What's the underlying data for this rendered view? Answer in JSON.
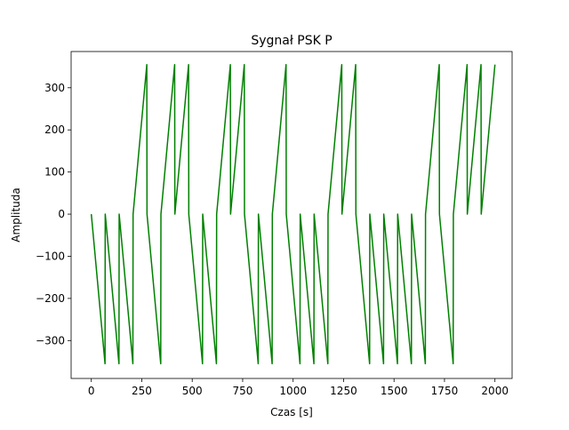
{
  "chart_data": {
    "type": "line",
    "title": "Sygnał PSK P",
    "xlabel": "Czas [s]",
    "ylabel": "Amplituda",
    "color": "#008000",
    "x": [
      0,
      17,
      34,
      51,
      68,
      69,
      86,
      103,
      120,
      137,
      138,
      155,
      172,
      189,
      206,
      207,
      224,
      241,
      258,
      275,
      276,
      293,
      310,
      327,
      344,
      345,
      362,
      379,
      396,
      413,
      414,
      431,
      448,
      465,
      482,
      483,
      500,
      517,
      534,
      551,
      552,
      569,
      586,
      603,
      620,
      621,
      638,
      655,
      672,
      689,
      690,
      707,
      724,
      741,
      758,
      759,
      776,
      793,
      810,
      827,
      828,
      845,
      862,
      879,
      896,
      897,
      914,
      931,
      948,
      965,
      966,
      983,
      1000,
      1017,
      1034,
      1035,
      1052,
      1069,
      1086,
      1103,
      1104,
      1121,
      1138,
      1155,
      1172,
      1173,
      1190,
      1207,
      1224,
      1241,
      1242,
      1259,
      1276,
      1293,
      1310,
      1311,
      1328,
      1345,
      1362,
      1379,
      1380,
      1397,
      1414,
      1431,
      1448,
      1449,
      1466,
      1483,
      1500,
      1517,
      1518,
      1535,
      1552,
      1569,
      1586,
      1587,
      1604,
      1621,
      1638,
      1655,
      1656,
      1673,
      1690,
      1707,
      1724,
      1725,
      1742,
      1759,
      1776,
      1793,
      1794,
      1811,
      1828,
      1845,
      1862,
      1863,
      1880,
      1897,
      1914,
      1931,
      1932,
      1949,
      1966,
      1983,
      2000
    ],
    "values": [
      0,
      -88,
      -177,
      -266,
      -355,
      0,
      -88,
      -177,
      -266,
      -355,
      0,
      -88,
      -177,
      -266,
      -355,
      0,
      88,
      177,
      266,
      355,
      0,
      -88,
      -177,
      -266,
      -355,
      0,
      88,
      177,
      266,
      355,
      0,
      88,
      177,
      266,
      355,
      0,
      -88,
      -177,
      -266,
      -355,
      0,
      -88,
      -177,
      -266,
      -355,
      0,
      88,
      177,
      266,
      355,
      0,
      88,
      177,
      266,
      355,
      0,
      -88,
      -177,
      -266,
      -355,
      0,
      -88,
      -177,
      -266,
      -355,
      0,
      88,
      177,
      266,
      355,
      0,
      -88,
      -177,
      -266,
      -355,
      0,
      -88,
      -177,
      -266,
      -355,
      0,
      -88,
      -177,
      -266,
      -355,
      0,
      88,
      177,
      266,
      355,
      0,
      88,
      177,
      266,
      355,
      0,
      -88,
      -177,
      -266,
      -355,
      0,
      -88,
      -177,
      -266,
      -355,
      0,
      -88,
      -177,
      -266,
      -355,
      0,
      -88,
      -177,
      -266,
      -355,
      0,
      -88,
      -177,
      -266,
      -355,
      0,
      88,
      177,
      266,
      355,
      0,
      -88,
      -177,
      -266,
      -355,
      0,
      88,
      177,
      266,
      355,
      0,
      88,
      177,
      266,
      355,
      0,
      88,
      177,
      266,
      355
    ],
    "xlim": [
      -100,
      2085
    ],
    "ylim": [
      -390,
      386
    ],
    "xticks": [
      0,
      250,
      500,
      750,
      1000,
      1250,
      1500,
      1750,
      2000
    ],
    "yticks": [
      {
        "value": -300,
        "label": "−300"
      },
      {
        "value": -200,
        "label": "−200"
      },
      {
        "value": -100,
        "label": "−100"
      },
      0,
      100,
      200,
      300
    ]
  }
}
